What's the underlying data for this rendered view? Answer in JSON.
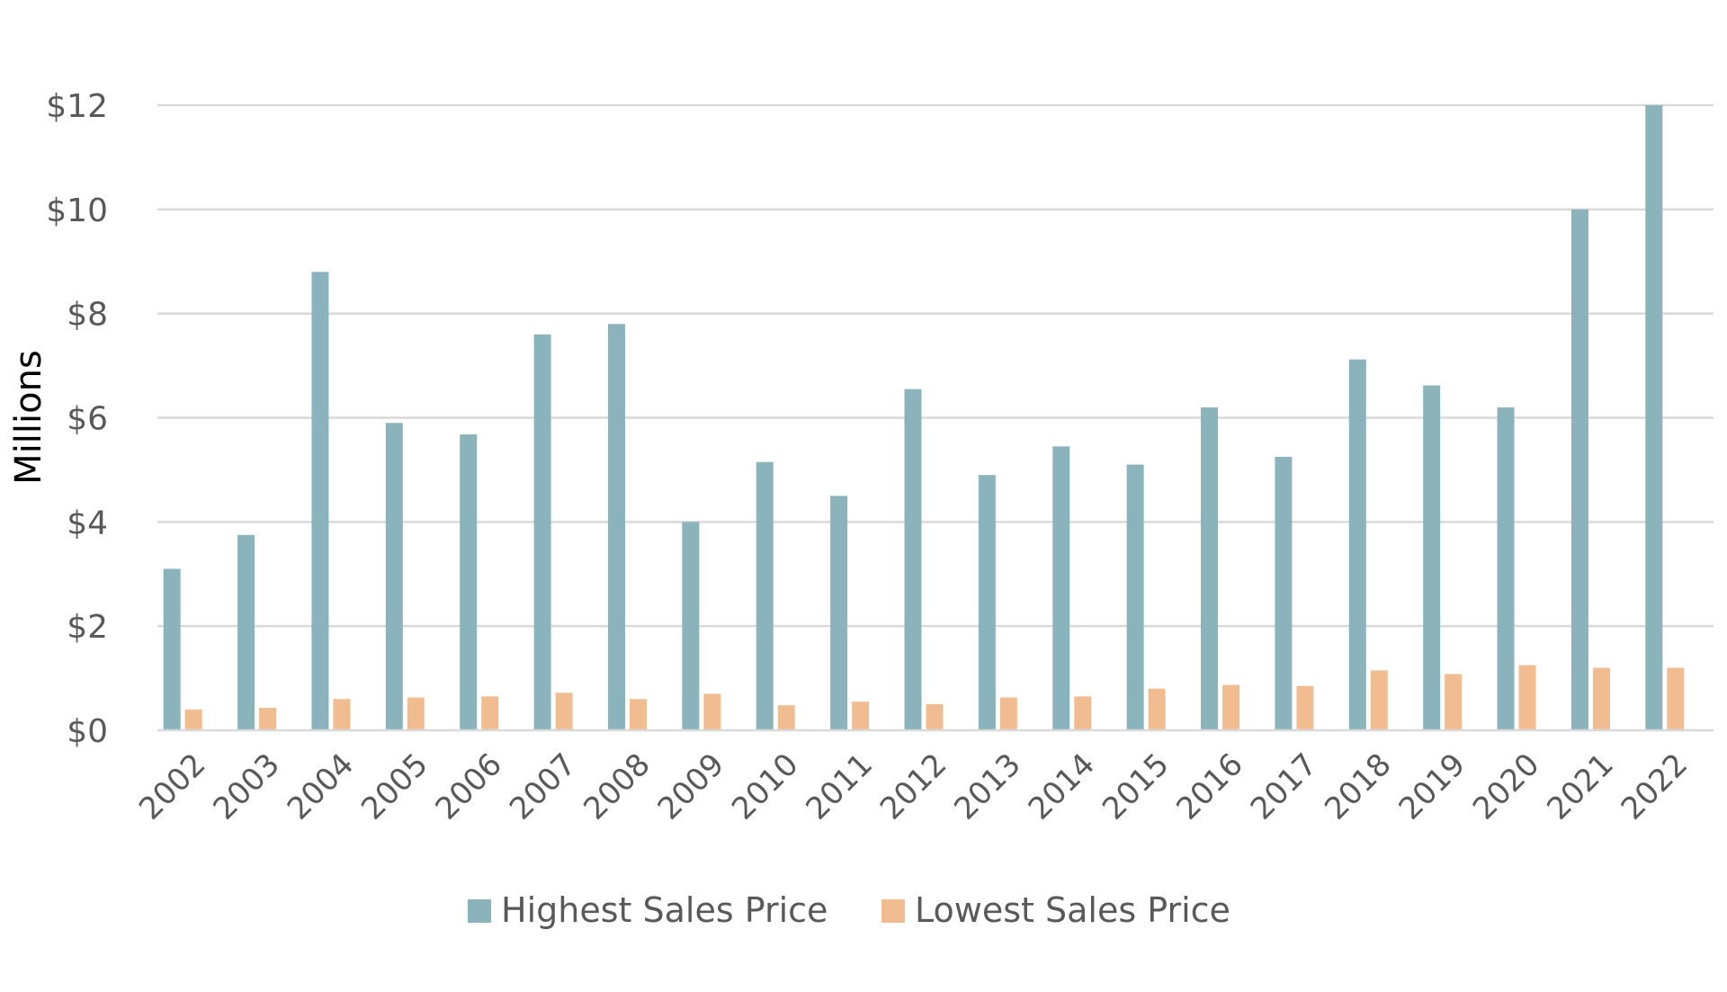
{
  "chart_data": {
    "type": "bar",
    "title": "",
    "xlabel": "",
    "ylabel": "Millions",
    "ylim": [
      0,
      12
    ],
    "yticks": [
      0,
      2,
      4,
      6,
      8,
      10,
      12
    ],
    "ytick_labels": [
      "$0",
      "$2",
      "$4",
      "$6",
      "$8",
      "$10",
      "$12"
    ],
    "grid": true,
    "legend_position": "bottom-center",
    "categories": [
      "2002",
      "2003",
      "2004",
      "2005",
      "2006",
      "2007",
      "2008",
      "2009",
      "2010",
      "2011",
      "2012",
      "2013",
      "2014",
      "2015",
      "2016",
      "2017",
      "2018",
      "2019",
      "2020",
      "2021",
      "2022"
    ],
    "series": [
      {
        "name": "Highest Sales Price",
        "color": "#8AB3BC",
        "values": [
          3.1,
          3.75,
          8.8,
          5.9,
          5.68,
          7.6,
          7.8,
          4.0,
          5.15,
          4.5,
          6.55,
          4.9,
          5.45,
          5.1,
          6.2,
          5.25,
          7.12,
          6.62,
          6.2,
          10.0,
          12.0
        ]
      },
      {
        "name": "Lowest Sales Price",
        "color": "#F2BC91",
        "values": [
          0.4,
          0.43,
          0.6,
          0.63,
          0.65,
          0.72,
          0.6,
          0.7,
          0.48,
          0.55,
          0.5,
          0.63,
          0.65,
          0.8,
          0.87,
          0.85,
          1.15,
          1.08,
          1.25,
          1.2,
          1.2
        ]
      }
    ]
  }
}
